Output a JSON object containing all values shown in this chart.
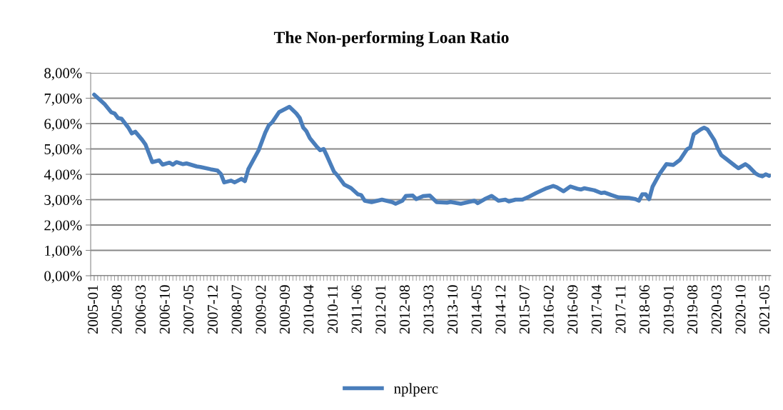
{
  "chart_data": {
    "type": "line",
    "title": "The Non-performing Loan Ratio",
    "series": [
      {
        "name": "nplperc",
        "color": "#4a7ebb",
        "x": [
          "2005-01",
          "2005-04",
          "2005-06",
          "2005-07",
          "2005-08",
          "2005-09",
          "2005-11",
          "2005-12",
          "2006-01",
          "2006-03",
          "2006-04",
          "2006-06",
          "2006-08",
          "2006-09",
          "2006-11",
          "2006-12",
          "2007-01",
          "2007-03",
          "2007-04",
          "2007-07",
          "2007-08",
          "2007-11",
          "2008-01",
          "2008-02",
          "2008-03",
          "2008-05",
          "2008-06",
          "2008-08",
          "2008-09",
          "2008-10",
          "2009-01",
          "2009-03",
          "2009-04",
          "2009-05",
          "2009-07",
          "2009-10",
          "2009-12",
          "2010-01",
          "2010-02",
          "2010-03",
          "2010-04",
          "2010-06",
          "2010-07",
          "2010-08",
          "2010-09",
          "2010-11",
          "2010-12",
          "2011-02",
          "2011-04",
          "2011-06",
          "2011-07",
          "2011-08",
          "2011-10",
          "2012-01",
          "2012-04",
          "2012-05",
          "2012-07",
          "2012-08",
          "2012-10",
          "2012-11",
          "2013-01",
          "2013-03",
          "2013-05",
          "2013-08",
          "2013-09",
          "2013-12",
          "2014-04",
          "2014-05",
          "2014-07",
          "2014-09",
          "2014-11",
          "2015-01",
          "2015-02",
          "2015-04",
          "2015-06",
          "2015-08",
          "2015-10",
          "2016-01",
          "2016-03",
          "2016-04",
          "2016-06",
          "2016-08",
          "2016-10",
          "2016-11",
          "2016-12",
          "2017-03",
          "2017-05",
          "2017-06",
          "2017-08",
          "2017-10",
          "2018-01",
          "2018-03",
          "2018-04",
          "2018-05",
          "2018-06",
          "2018-07",
          "2018-08",
          "2018-10",
          "2018-12",
          "2019-02",
          "2019-04",
          "2019-06",
          "2019-07",
          "2019-08",
          "2019-10",
          "2019-11",
          "2019-12",
          "2020-02",
          "2020-03",
          "2020-04",
          "2020-06",
          "2020-08",
          "2020-09",
          "2020-11",
          "2020-12",
          "2021-02",
          "2021-03",
          "2021-04",
          "2021-05",
          "2021-06"
        ],
        "values": [
          7.14,
          6.78,
          6.45,
          6.4,
          6.22,
          6.19,
          5.84,
          5.61,
          5.68,
          5.37,
          5.18,
          4.48,
          4.55,
          4.38,
          4.46,
          4.38,
          4.48,
          4.4,
          4.43,
          4.31,
          4.29,
          4.2,
          4.15,
          4.01,
          3.68,
          3.75,
          3.68,
          3.82,
          3.73,
          4.2,
          4.95,
          5.65,
          5.93,
          6.05,
          6.45,
          6.66,
          6.4,
          6.22,
          5.84,
          5.7,
          5.42,
          5.09,
          4.95,
          5.0,
          4.71,
          4.1,
          3.96,
          3.59,
          3.46,
          3.21,
          3.18,
          2.96,
          2.9,
          3.0,
          2.9,
          2.84,
          2.96,
          3.15,
          3.16,
          3.02,
          3.14,
          3.16,
          2.9,
          2.88,
          2.91,
          2.84,
          2.96,
          2.86,
          3.02,
          3.15,
          2.96,
          3.0,
          2.93,
          3.0,
          3.0,
          3.12,
          3.26,
          3.45,
          3.54,
          3.49,
          3.33,
          3.52,
          3.43,
          3.4,
          3.45,
          3.37,
          3.26,
          3.28,
          3.18,
          3.09,
          3.07,
          3.02,
          2.96,
          3.21,
          3.21,
          3.02,
          3.52,
          4.01,
          4.4,
          4.37,
          4.57,
          4.98,
          5.06,
          5.58,
          5.77,
          5.84,
          5.77,
          5.34,
          5.02,
          4.76,
          4.55,
          4.34,
          4.24,
          4.4,
          4.31,
          4.03,
          3.96,
          3.92,
          4.0,
          3.94
        ]
      }
    ],
    "xlim": [
      "2004-12-16",
      "2021-06-16"
    ],
    "xticks": [
      "2005-01",
      "2005-08",
      "2006-03",
      "2006-10",
      "2007-05",
      "2007-12",
      "2008-07",
      "2009-02",
      "2009-09",
      "2010-04",
      "2010-11",
      "2011-06",
      "2012-01",
      "2012-08",
      "2013-03",
      "2013-10",
      "2014-05",
      "2014-12",
      "2015-07",
      "2016-02",
      "2016-09",
      "2017-04",
      "2017-11",
      "2018-06",
      "2019-01",
      "2019-08",
      "2020-03",
      "2020-10",
      "2021-05"
    ],
    "ylim": [
      0,
      8
    ],
    "yticks": [
      {
        "value": 0,
        "label": "0,00%"
      },
      {
        "value": 1,
        "label": "1,00%"
      },
      {
        "value": 2,
        "label": "2,00%"
      },
      {
        "value": 3,
        "label": "3,00%"
      },
      {
        "value": 4,
        "label": "4,00%"
      },
      {
        "value": 5,
        "label": "5,00%"
      },
      {
        "value": 6,
        "label": "6,00%"
      },
      {
        "value": 7,
        "label": "7,00%"
      },
      {
        "value": 8,
        "label": "8,00%"
      }
    ],
    "grid": "y",
    "legend": "bottom",
    "marker": "none",
    "line_style": "solid"
  }
}
